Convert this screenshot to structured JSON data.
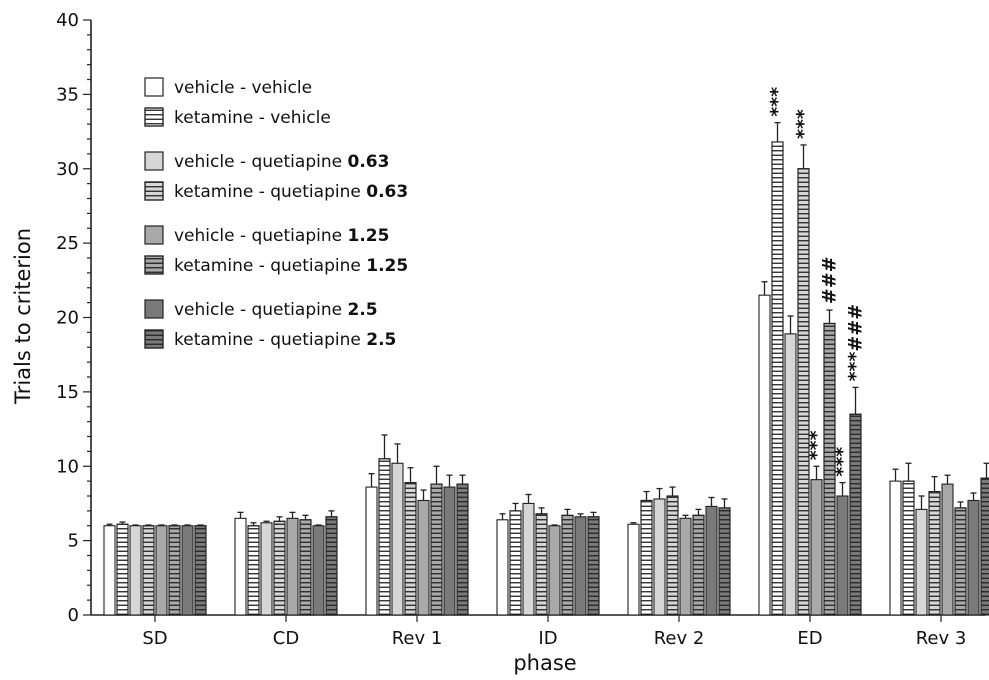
{
  "chart_data": {
    "type": "bar",
    "ylabel": "Trials to criterion",
    "xlabel": "phase",
    "ylim": [
      0,
      40
    ],
    "yticks": [
      0,
      5,
      10,
      15,
      20,
      25,
      30,
      35,
      40
    ],
    "categories": [
      "SD",
      "CD",
      "Rev 1",
      "ID",
      "Rev 2",
      "ED",
      "Rev 3"
    ],
    "series": [
      {
        "name": "vehicle - vehicle",
        "legend_text": "vehicle - vehicle",
        "legend_dose": "",
        "fill": "#ffffff",
        "hatch": false,
        "values": [
          6.0,
          6.5,
          8.6,
          6.4,
          6.1,
          21.5,
          9.0
        ],
        "errors": [
          0.1,
          0.4,
          0.9,
          0.4,
          0.1,
          0.9,
          0.8
        ]
      },
      {
        "name": "ketamine - vehicle",
        "legend_text": "ketamine - vehicle",
        "legend_dose": "",
        "fill": "#ffffff",
        "hatch": true,
        "values": [
          6.1,
          6.0,
          10.5,
          7.0,
          7.7,
          31.8,
          9.0
        ],
        "errors": [
          0.15,
          0.2,
          1.6,
          0.5,
          0.6,
          1.3,
          1.2
        ]
      },
      {
        "name": "vehicle - quetiapine 0.63",
        "legend_text": "vehicle - quetiapine",
        "legend_dose": "0.63",
        "fill": "#d6d6d6",
        "hatch": false,
        "values": [
          6.0,
          6.2,
          10.2,
          7.5,
          7.8,
          18.9,
          7.1
        ],
        "errors": [
          0.05,
          0.1,
          1.3,
          0.6,
          0.7,
          1.2,
          0.9
        ]
      },
      {
        "name": "ketamine - quetiapine 0.63",
        "legend_text": "ketamine - quetiapine",
        "legend_dose": "0.63",
        "fill": "#d6d6d6",
        "hatch": true,
        "values": [
          6.0,
          6.3,
          8.9,
          6.8,
          8.0,
          30.0,
          8.3
        ],
        "errors": [
          0.05,
          0.3,
          1.0,
          0.4,
          0.6,
          1.6,
          1.0
        ]
      },
      {
        "name": "vehicle - quetiapine 1.25",
        "legend_text": "vehicle - quetiapine",
        "legend_dose": "1.25",
        "fill": "#a9a9a9",
        "hatch": false,
        "values": [
          6.0,
          6.5,
          7.7,
          6.0,
          6.5,
          9.1,
          8.8
        ],
        "errors": [
          0.05,
          0.4,
          0.7,
          0.05,
          0.2,
          0.9,
          0.6
        ]
      },
      {
        "name": "ketamine - quetiapine 1.25",
        "legend_text": "ketamine - quetiapine",
        "legend_dose": "1.25",
        "fill": "#a9a9a9",
        "hatch": true,
        "values": [
          6.0,
          6.4,
          8.8,
          6.7,
          6.7,
          19.6,
          7.2
        ],
        "errors": [
          0.05,
          0.3,
          1.2,
          0.4,
          0.4,
          0.9,
          0.4
        ]
      },
      {
        "name": "vehicle - quetiapine 2.5",
        "legend_text": "vehicle - quetiapine",
        "legend_dose": "2.5",
        "fill": "#7a7a7a",
        "hatch": false,
        "values": [
          6.0,
          6.0,
          8.6,
          6.6,
          7.3,
          8.0,
          7.7
        ],
        "errors": [
          0.05,
          0.05,
          0.8,
          0.2,
          0.6,
          0.9,
          0.5
        ]
      },
      {
        "name": "ketamine - quetiapine 2.5",
        "legend_text": "ketamine - quetiapine",
        "legend_dose": "2.5",
        "fill": "#7a7a7a",
        "hatch": true,
        "values": [
          6.0,
          6.6,
          8.8,
          6.6,
          7.2,
          13.5,
          9.2
        ],
        "errors": [
          0.05,
          0.4,
          0.6,
          0.3,
          0.6,
          1.8,
          1.0
        ]
      }
    ],
    "annotations": [
      {
        "category": "ED",
        "series": 1,
        "text": "***"
      },
      {
        "category": "ED",
        "series": 3,
        "text": "***"
      },
      {
        "category": "ED",
        "series": 4,
        "text": "***"
      },
      {
        "category": "ED",
        "series": 5,
        "text": "###"
      },
      {
        "category": "ED",
        "series": 6,
        "text": "***"
      },
      {
        "category": "ED",
        "series": 7,
        "text": "***###"
      }
    ],
    "legend_position": "top-left",
    "grid": false
  }
}
